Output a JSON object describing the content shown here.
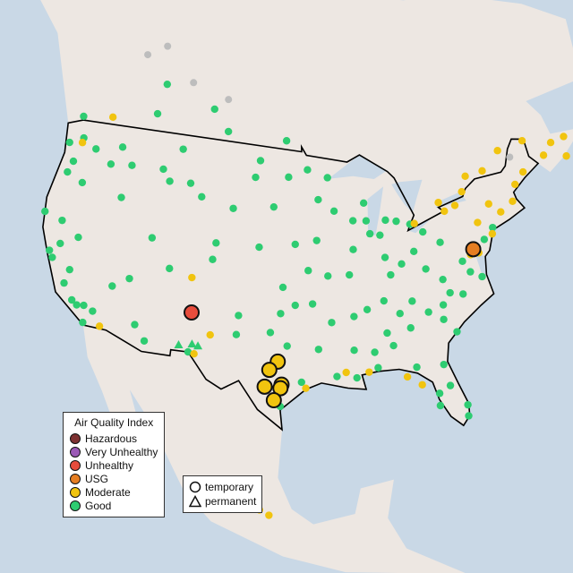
{
  "map": {
    "colors": {
      "ocean": "#c9d8e6",
      "land": "#ede7e2",
      "border": "#000000",
      "state_lines": "#9a9a9a"
    },
    "large_markers": [
      {
        "lon": -106.6,
        "lat": 35.1,
        "aqi": "Unhealthy",
        "type": "temporary"
      },
      {
        "lon": -76.6,
        "lat": 39.3,
        "aqi": "USG",
        "type": "temporary"
      },
      {
        "lon": -97.7,
        "lat": 31.5,
        "aqi": "Moderate",
        "type": "temporary"
      },
      {
        "lon": -98.5,
        "lat": 30.8,
        "aqi": "Moderate",
        "type": "temporary"
      },
      {
        "lon": -98.9,
        "lat": 29.4,
        "aqi": "Moderate",
        "type": "temporary"
      },
      {
        "lon": -97.3,
        "lat": 29.6,
        "aqi": "Moderate",
        "type": "temporary"
      },
      {
        "lon": -97.4,
        "lat": 29.3,
        "aqi": "Moderate",
        "type": "temporary"
      },
      {
        "lon": -98.0,
        "lat": 28.3,
        "aqi": "Moderate",
        "type": "temporary"
      }
    ],
    "good": [
      [
        -122.3,
        47.6
      ],
      [
        -122.7,
        45.5
      ],
      [
        -122.4,
        37.8
      ],
      [
        -118.2,
        34.0
      ],
      [
        -117.2,
        32.7
      ],
      [
        -121.5,
        38.6
      ],
      [
        -119.8,
        36.7
      ],
      [
        -119.8,
        39.5
      ],
      [
        -116.2,
        43.6
      ],
      [
        -111.9,
        40.8
      ],
      [
        -112.1,
        33.4
      ],
      [
        -110.9,
        32.2
      ],
      [
        -105.0,
        39.7
      ],
      [
        -104.8,
        41.1
      ],
      [
        -108.5,
        45.8
      ],
      [
        -112.0,
        46.6
      ],
      [
        -117.4,
        47.7
      ],
      [
        -100.8,
        46.8
      ],
      [
        -96.8,
        46.9
      ],
      [
        -93.3,
        45.0
      ],
      [
        -93.6,
        41.6
      ],
      [
        -96.0,
        41.3
      ],
      [
        -94.6,
        39.1
      ],
      [
        -97.3,
        37.7
      ],
      [
        -97.5,
        35.5
      ],
      [
        -96.0,
        36.2
      ],
      [
        -96.8,
        32.8
      ],
      [
        -90.2,
        38.6
      ],
      [
        -87.6,
        41.9
      ],
      [
        -87.9,
        43.0
      ],
      [
        -83.0,
        42.3
      ],
      [
        -86.2,
        39.8
      ],
      [
        -83.0,
        40.0
      ],
      [
        -81.7,
        41.5
      ],
      [
        -80.0,
        40.4
      ],
      [
        -86.8,
        36.2
      ],
      [
        -90.0,
        35.1
      ],
      [
        -84.4,
        33.7
      ],
      [
        -86.8,
        33.5
      ],
      [
        -90.2,
        32.3
      ],
      [
        -90.1,
        30.0
      ],
      [
        -82.5,
        28.0
      ],
      [
        -81.4,
        28.5
      ],
      [
        -80.2,
        25.8
      ],
      [
        -81.7,
        30.3
      ],
      [
        -80.8,
        35.2
      ],
      [
        -78.6,
        35.8
      ],
      [
        -77.4,
        37.5
      ],
      [
        -76.3,
        36.9
      ],
      [
        -79.9,
        32.8
      ],
      [
        -85.8,
        38.3
      ],
      [
        -92.3,
        34.7
      ],
      [
        -114.0,
        51.0
      ],
      [
        -113.5,
        53.5
      ],
      [
        -123.1,
        49.3
      ],
      [
        -97.1,
        49.9
      ],
      [
        -104.6,
        50.4
      ],
      [
        -106.7,
        52.1
      ],
      [
        -120.5,
        47.0
      ],
      [
        -121.0,
        44.0
      ],
      [
        -123.0,
        44.5
      ],
      [
        -120.0,
        35.5
      ],
      [
        -117.5,
        34.1
      ],
      [
        -116.5,
        33.8
      ],
      [
        -118.8,
        34.3
      ],
      [
        -121.9,
        37.3
      ],
      [
        -122.0,
        40.5
      ],
      [
        -115.1,
        36.2
      ],
      [
        -113.5,
        37.1
      ],
      [
        -109.5,
        38.5
      ],
      [
        -107.0,
        44.8
      ],
      [
        -103.2,
        44.1
      ],
      [
        -98.5,
        44.4
      ],
      [
        -100.0,
        41.0
      ],
      [
        -101.8,
        35.2
      ],
      [
        -101.9,
        33.6
      ],
      [
        -98.5,
        33.9
      ],
      [
        -94.2,
        36.3
      ],
      [
        -92.5,
        38.6
      ],
      [
        -89.6,
        40.7
      ],
      [
        -88.0,
        44.5
      ],
      [
        -91.5,
        44.0
      ],
      [
        -84.5,
        42.7
      ],
      [
        -85.7,
        42.9
      ],
      [
        -86.5,
        41.7
      ],
      [
        -84.5,
        39.1
      ],
      [
        -82.0,
        38.4
      ],
      [
        -83.9,
        35.9
      ],
      [
        -85.3,
        35.0
      ],
      [
        -88.6,
        35.6
      ],
      [
        -88.0,
        30.7
      ],
      [
        -86.3,
        32.4
      ],
      [
        -84.3,
        30.4
      ],
      [
        -82.6,
        27.0
      ],
      [
        -80.1,
        26.7
      ],
      [
        -81.0,
        34.0
      ],
      [
        -82.4,
        34.8
      ],
      [
        -79.9,
        36.1
      ],
      [
        -80.4,
        37.3
      ],
      [
        -78.0,
        38.5
      ],
      [
        -75.2,
        39.9
      ],
      [
        -74.0,
        40.7
      ],
      [
        -88.2,
        32.0
      ],
      [
        -92.0,
        30.2
      ],
      [
        -93.7,
        32.5
      ],
      [
        -95.4,
        29.8
      ],
      [
        -97.4,
        27.8
      ],
      [
        -106.5,
        31.8
      ],
      [
        -111.0,
        45.7
      ],
      [
        -115.8,
        46.4
      ],
      [
        -118.3,
        46.1
      ],
      [
        -124.1,
        40.8
      ],
      [
        -123.8,
        46.9
      ],
      [
        -110.0,
        48.5
      ],
      [
        -100.3,
        48.2
      ],
      [
        -94.5,
        47.5
      ],
      [
        -92.1,
        46.8
      ],
      [
        -89.4,
        43.1
      ]
    ],
    "moderate": [
      [
        -79.4,
        43.7
      ],
      [
        -73.6,
        45.5
      ],
      [
        -71.2,
        46.8
      ],
      [
        -72.7,
        41.8
      ],
      [
        -71.1,
        42.4
      ],
      [
        -73.8,
        42.7
      ],
      [
        -75.5,
        41.4
      ],
      [
        -74.2,
        40.2
      ],
      [
        -70.3,
        43.7
      ],
      [
        -69.0,
        44.5
      ],
      [
        -66.1,
        45.3
      ],
      [
        -63.6,
        44.6
      ],
      [
        -63.1,
        46.2
      ],
      [
        -64.8,
        46.1
      ],
      [
        -68.0,
        47.0
      ],
      [
        -75.7,
        45.4
      ],
      [
        -76.5,
        44.2
      ],
      [
        -77.6,
        43.2
      ],
      [
        -78.9,
        42.9
      ],
      [
        -82.5,
        42.3
      ],
      [
        -76.1,
        38.9
      ],
      [
        -77.0,
        38.9
      ],
      [
        -105.9,
        31.7
      ],
      [
        -104.5,
        33.4
      ],
      [
        -107.0,
        38.0
      ],
      [
        -122.3,
        47.2
      ],
      [
        -115.5,
        32.7
      ],
      [
        -99.0,
        19.4
      ],
      [
        -98.2,
        19.0
      ],
      [
        -85.3,
        29.7
      ],
      [
        -88.9,
        30.4
      ],
      [
        -95.0,
        29.3
      ],
      [
        -91.1,
        30.5
      ],
      [
        -84.0,
        28.9
      ],
      [
        -119.5,
        49.9
      ]
    ],
    "no_data": [
      [
        -117.0,
        55.5
      ],
      [
        -114.5,
        56.5
      ],
      [
        -110.0,
        54.0
      ],
      [
        -105.0,
        53.0
      ],
      [
        -70.0,
        46.0
      ]
    ],
    "permanent": [
      [
        -107.5,
        32.3
      ],
      [
        -106.2,
        32.5
      ],
      [
        -105.6,
        32.4
      ]
    ]
  },
  "legend": {
    "title": "Air Quality Index",
    "items": [
      {
        "label": "Hazardous",
        "color": "#7e3232"
      },
      {
        "label": "Very Unhealthy",
        "color": "#9b59b6"
      },
      {
        "label": "Unhealthy",
        "color": "#e74c3c"
      },
      {
        "label": "USG",
        "color": "#e67e22"
      },
      {
        "label": "Moderate",
        "color": "#f1c40f"
      },
      {
        "label": "Good",
        "color": "#2ecc71"
      }
    ],
    "types": [
      {
        "label": "temporary",
        "shape": "circle"
      },
      {
        "label": "permanent",
        "shape": "triangle"
      }
    ],
    "no_data_color": "#bdbdbd"
  }
}
